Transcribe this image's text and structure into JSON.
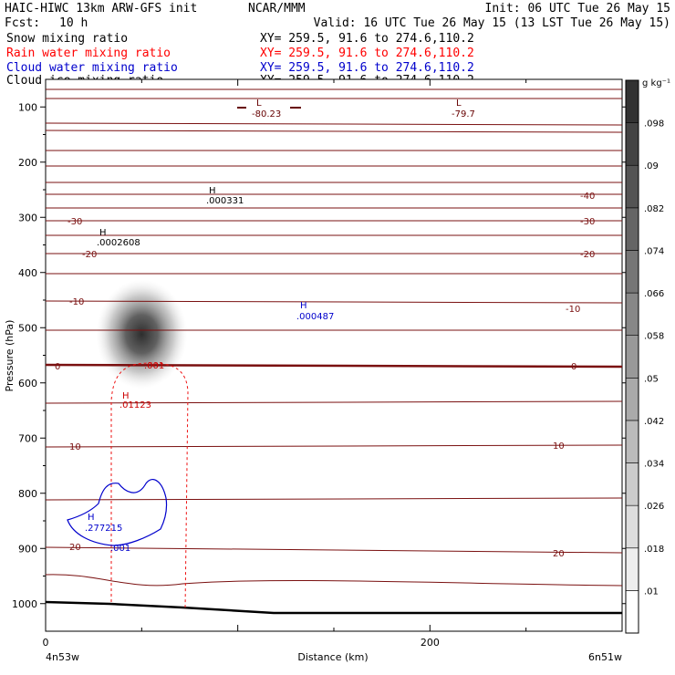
{
  "header": {
    "title": "HAIC-HIWC 13km ARW-GFS init",
    "org": "NCAR/MMM",
    "init": "Init: 06 UTC Tue 26 May 15",
    "fcst_label": "Fcst:",
    "fcst_value": "10 h",
    "valid": "Valid: 16 UTC Tue 26 May 15 (13 LST Tue 26 May 15)"
  },
  "fields": [
    {
      "name": "Snow mixing ratio",
      "xy": "XY= 259.5, 91.6 to 274.6,110.2",
      "color": "#000000"
    },
    {
      "name": "Rain water mixing ratio",
      "xy": "XY= 259.5, 91.6 to 274.6,110.2",
      "color": "#ff0000"
    },
    {
      "name": "Cloud water mixing ratio",
      "xy": "XY= 259.5, 91.6 to 274.6,110.2",
      "color": "#0000cc"
    },
    {
      "name": "Cloud ice mixing ratio",
      "xy": "XY= 259.5, 91.6 to 274.6,110.2",
      "color": "#000000"
    }
  ],
  "chart_data": {
    "type": "heatmap",
    "xlabel": "Distance (km)",
    "ylabel": "Pressure (hPa)",
    "xlim": [
      0,
      300
    ],
    "ylim": [
      1050,
      50
    ],
    "x_ticks": [
      0,
      200
    ],
    "y_ticks": [
      100,
      200,
      300,
      400,
      500,
      600,
      700,
      800,
      900,
      1000
    ],
    "x_end_labels": [
      "4n53w",
      "6n51w"
    ],
    "colorbar": {
      "unit": "g kg⁻¹",
      "levels": [
        0.01,
        0.018,
        0.026,
        0.034,
        0.042,
        0.05,
        0.058,
        0.066,
        0.074,
        0.082,
        0.09,
        0.098
      ],
      "tick_labels": [
        ".01",
        ".018",
        ".026",
        ".034",
        ".042",
        ".05",
        ".058",
        ".066",
        ".074",
        ".082",
        ".09",
        ".098"
      ]
    },
    "shaded_max": {
      "x": 50,
      "p": 520,
      "value": 0.098
    },
    "temperature_contours": [
      {
        "label": "-40",
        "p": 265
      },
      {
        "label": "-30",
        "p": 295
      },
      {
        "label": "-20",
        "p": 360
      },
      {
        "label": "-10",
        "p": 480
      },
      {
        "label": "0",
        "p": 565
      },
      {
        "label": "10",
        "p": 710
      },
      {
        "label": "20",
        "p": 880
      }
    ],
    "extrema": [
      {
        "kind": "L",
        "value": "-80.23",
        "x": 115,
        "p": 110,
        "color": "#660000"
      },
      {
        "kind": "L",
        "value": "-79.7",
        "x": 225,
        "p": 110,
        "color": "#660000"
      },
      {
        "kind": "H",
        "value": ".000331",
        "x": 90,
        "p": 250,
        "color": "#000000"
      },
      {
        "kind": "H",
        "value": ".0002608",
        "x": 30,
        "p": 335,
        "color": "#000000"
      },
      {
        "kind": "H",
        "value": ".000487",
        "x": 140,
        "p": 470,
        "color": "#0000cc"
      },
      {
        "kind": "H",
        "value": ".01123",
        "x": 42,
        "p": 640,
        "color": "#cc0000"
      },
      {
        "kind": "H",
        "value": ".277215",
        "x": 22,
        "p": 850,
        "color": "#0000cc"
      }
    ],
    "contour_labels": [
      {
        "text": ".001",
        "color": "#cc0000"
      },
      {
        "text": ".001",
        "color": "#0000cc"
      }
    ]
  }
}
